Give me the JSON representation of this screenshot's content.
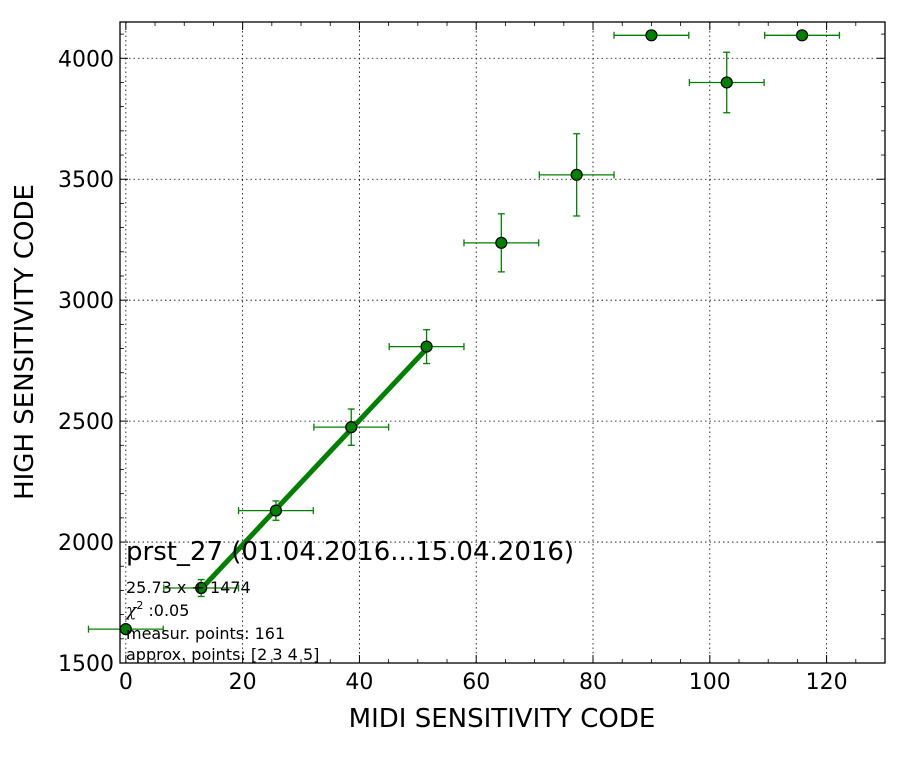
{
  "chart_data": {
    "type": "scatter",
    "title": "",
    "xlabel": "MIDI SENSITIVITY CODE",
    "ylabel": "HIGH SENSITIVITY CODE",
    "xlim": [
      -1,
      130
    ],
    "ylim": [
      1500,
      4150
    ],
    "grid": true,
    "xticks": [
      "0",
      "20",
      "40",
      "60",
      "80",
      "100",
      "120"
    ],
    "yticks": [
      "1500",
      "2000",
      "2500",
      "3000",
      "3500",
      "4000"
    ],
    "xtick_values": [
      0,
      20,
      40,
      60,
      80,
      100,
      120
    ],
    "ytick_values": [
      1500,
      2000,
      2500,
      3000,
      3500,
      4000
    ],
    "colors": {
      "series": "#008000",
      "marker_fill": "#008000",
      "marker_edge": "#000000",
      "grid": "#000000"
    },
    "points": [
      {
        "x": 0,
        "y": 1640,
        "xerr": 6.4,
        "yerr": 0
      },
      {
        "x": 12.9,
        "y": 1810,
        "xerr": 6.4,
        "yerr": 35
      },
      {
        "x": 25.7,
        "y": 2130,
        "xerr": 6.4,
        "yerr": 40
      },
      {
        "x": 38.6,
        "y": 2475,
        "xerr": 6.4,
        "yerr": 75
      },
      {
        "x": 51.5,
        "y": 2808,
        "xerr": 6.4,
        "yerr": 70
      },
      {
        "x": 64.3,
        "y": 3237,
        "xerr": 6.4,
        "yerr": 120
      },
      {
        "x": 77.2,
        "y": 3518,
        "xerr": 6.4,
        "yerr": 170
      },
      {
        "x": 90.0,
        "y": 4095,
        "xerr": 6.4,
        "yerr": 0
      },
      {
        "x": 102.9,
        "y": 3900,
        "xerr": 6.4,
        "yerr": 125
      },
      {
        "x": 115.8,
        "y": 4095,
        "xerr": 6.4,
        "yerr": 0
      }
    ],
    "fit_line": {
      "slope": 25.73,
      "intercept": 1474,
      "x_range": [
        12.9,
        51.5
      ]
    },
    "annotations": {
      "title": "prst_27 (01.04.2016...15.04.2016)",
      "equation": "25.73 x + 1474",
      "chi_symbol": "χ",
      "chi_sup": "2",
      "chi_value": " :0.05",
      "measur_points": "measur. points: 161",
      "approx_points": "approx. points: [2 3 4 5]"
    }
  }
}
